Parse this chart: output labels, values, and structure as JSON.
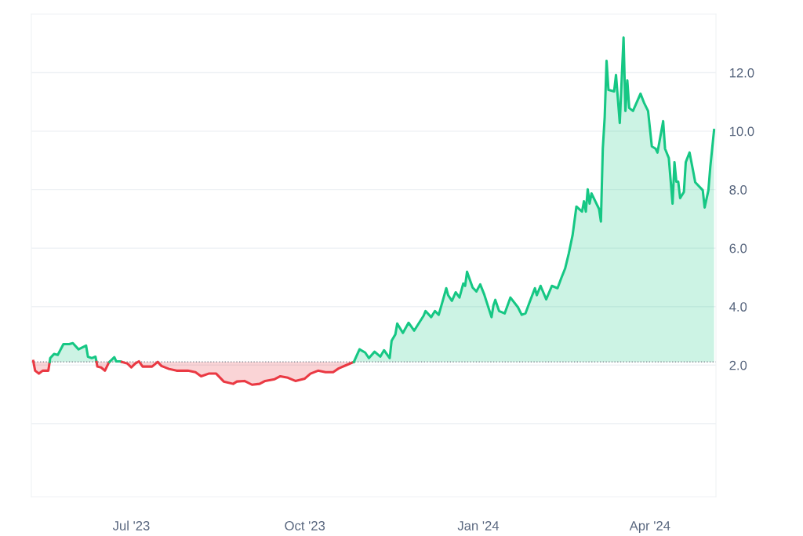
{
  "chart_data": {
    "type": "area",
    "series": [
      {
        "color": "#ea3943",
        "x": [
          "2023-05-10",
          "2023-05-11",
          "2023-05-13",
          "2023-05-15",
          "2023-05-18",
          "2023-05-18T17:00"
        ],
        "values": [
          2.14,
          1.81,
          1.71,
          1.81,
          1.81,
          2.11
        ]
      },
      {
        "color": "#16c784",
        "x": [
          "2023-05-18T17:00",
          "2023-05-19",
          "2023-05-21",
          "2023-05-23",
          "2023-05-26",
          "2023-05-29",
          "2023-05-31",
          "2023-06-03",
          "2023-06-07",
          "2023-06-08",
          "2023-06-10",
          "2023-06-12",
          "2023-06-12T13:00"
        ],
        "values": [
          2.11,
          2.24,
          2.38,
          2.35,
          2.72,
          2.72,
          2.75,
          2.54,
          2.67,
          2.29,
          2.24,
          2.29,
          2.11
        ]
      },
      {
        "color": "#ea3943",
        "x": [
          "2023-06-12T13:00",
          "2023-06-13",
          "2023-06-15",
          "2023-06-17",
          "2023-06-19",
          "2023-06-19T11:00"
        ],
        "values": [
          2.11,
          1.95,
          1.92,
          1.81,
          2.08,
          2.11
        ]
      },
      {
        "color": "#16c784",
        "x": [
          "2023-06-19T11:00",
          "2023-06-22",
          "2023-06-23",
          "2023-06-25",
          "2023-06-26"
        ],
        "values": [
          2.11,
          2.27,
          2.13,
          2.13,
          2.11
        ]
      },
      {
        "color": "#ea3943",
        "x": [
          "2023-06-26",
          "2023-06-29",
          "2023-07-01",
          "2023-07-03",
          "2023-07-05",
          "2023-07-07",
          "2023-07-12",
          "2023-07-15",
          "2023-07-17",
          "2023-07-21",
          "2023-07-25",
          "2023-07-31",
          "2023-08-04",
          "2023-08-07",
          "2023-08-11",
          "2023-08-15",
          "2023-08-19",
          "2023-08-24",
          "2023-08-26",
          "2023-08-30",
          "2023-09-03",
          "2023-09-07",
          "2023-09-10",
          "2023-09-15",
          "2023-09-18",
          "2023-09-22",
          "2023-09-26",
          "2023-10-01",
          "2023-10-04",
          "2023-10-08",
          "2023-10-12",
          "2023-10-16",
          "2023-10-19",
          "2023-10-23",
          "2023-10-27"
        ],
        "values": [
          2.11,
          2.05,
          1.92,
          2.05,
          2.13,
          1.95,
          1.95,
          2.11,
          1.97,
          1.87,
          1.81,
          1.81,
          1.76,
          1.62,
          1.71,
          1.71,
          1.44,
          1.36,
          1.44,
          1.46,
          1.33,
          1.36,
          1.46,
          1.52,
          1.62,
          1.57,
          1.46,
          1.54,
          1.71,
          1.81,
          1.76,
          1.76,
          1.89,
          2.0,
          2.11
        ]
      },
      {
        "color": "#16c784",
        "x": [
          "2023-10-27",
          "2023-10-30",
          "2023-11-02",
          "2023-11-04",
          "2023-11-07",
          "2023-11-10",
          "2023-11-12",
          "2023-11-15",
          "2023-11-16",
          "2023-11-18",
          "2023-11-19",
          "2023-11-22",
          "2023-11-25",
          "2023-11-28",
          "2023-12-03",
          "2023-12-04",
          "2023-12-07",
          "2023-12-09",
          "2023-12-11",
          "2023-12-13",
          "2023-12-15",
          "2023-12-16",
          "2023-12-18",
          "2023-12-20",
          "2023-12-22",
          "2023-12-24",
          "2023-12-25",
          "2023-12-26",
          "2023-12-29",
          "2023-12-31",
          "2024-01-02",
          "2024-01-04",
          "2024-01-08",
          "2024-01-09",
          "2024-01-10",
          "2024-01-12",
          "2024-01-15",
          "2024-01-18",
          "2024-01-22",
          "2024-01-24",
          "2024-01-26",
          "2024-01-28",
          "2024-01-31",
          "2024-02-01",
          "2024-02-03",
          "2024-02-06",
          "2024-02-09",
          "2024-02-12",
          "2024-02-14",
          "2024-02-16",
          "2024-02-18",
          "2024-02-20",
          "2024-02-22",
          "2024-02-25",
          "2024-02-26",
          "2024-02-27",
          "2024-02-28",
          "2024-02-29",
          "2024-03-01",
          "2024-03-05",
          "2024-03-06",
          "2024-03-07",
          "2024-03-08",
          "2024-03-09",
          "2024-03-10",
          "2024-03-13",
          "2024-03-14",
          "2024-03-16",
          "2024-03-18",
          "2024-03-19",
          "2024-03-20",
          "2024-03-21",
          "2024-03-23",
          "2024-03-27",
          "2024-03-29",
          "2024-03-31",
          "2024-04-02",
          "2024-04-04",
          "2024-04-05",
          "2024-04-08",
          "2024-04-09",
          "2024-04-11",
          "2024-04-13",
          "2024-04-14",
          "2024-04-15",
          "2024-04-16",
          "2024-04-17",
          "2024-04-19",
          "2024-04-20",
          "2024-04-22",
          "2024-04-24",
          "2024-04-25",
          "2024-04-29",
          "2024-04-30",
          "2024-05-02",
          "2024-05-03",
          "2024-05-05"
        ],
        "values": [
          2.11,
          2.54,
          2.43,
          2.24,
          2.46,
          2.29,
          2.51,
          2.24,
          2.83,
          3.05,
          3.42,
          3.1,
          3.45,
          3.18,
          3.69,
          3.85,
          3.64,
          3.85,
          3.72,
          4.17,
          4.63,
          4.39,
          4.2,
          4.49,
          4.31,
          4.79,
          4.71,
          5.19,
          4.65,
          4.52,
          4.76,
          4.44,
          3.64,
          4.04,
          4.23,
          3.85,
          3.77,
          4.31,
          3.98,
          3.72,
          3.77,
          4.12,
          4.63,
          4.39,
          4.71,
          4.25,
          4.71,
          4.63,
          4.98,
          5.3,
          5.83,
          6.45,
          7.42,
          7.25,
          7.6,
          7.25,
          8.01,
          7.52,
          7.87,
          7.34,
          6.91,
          9.4,
          10.47,
          12.4,
          11.41,
          11.36,
          11.92,
          10.28,
          13.2,
          10.69,
          11.73,
          10.79,
          10.69,
          11.28,
          10.95,
          10.69,
          9.48,
          9.4,
          9.27,
          10.34,
          9.4,
          9.08,
          7.52,
          8.94,
          8.27,
          8.27,
          7.71,
          7.92,
          8.94,
          9.27,
          8.6,
          8.25,
          7.98,
          7.39,
          7.98,
          8.78,
          10.04
        ]
      }
    ],
    "xlim": [
      "2023-05-09",
      "2024-05-06"
    ],
    "xticks": [
      {
        "value": "2023-07-01",
        "label": "Jul '23"
      },
      {
        "value": "2023-10-01",
        "label": "Oct '23"
      },
      {
        "value": "2024-01-01",
        "label": "Jan '24"
      },
      {
        "value": "2024-04-01",
        "label": "Apr '24"
      }
    ],
    "ylim": [
      -2.5,
      14.0
    ],
    "yticks": [
      {
        "value": 0,
        "label": null
      },
      {
        "value": 2,
        "label": "2.0"
      },
      {
        "value": 4,
        "label": "4.0"
      },
      {
        "value": 6,
        "label": "6.0"
      },
      {
        "value": 8,
        "label": "8.0"
      },
      {
        "value": 10,
        "label": "10.0"
      },
      {
        "value": 12,
        "label": "12.0"
      }
    ],
    "ref_lines": [
      {
        "axis": "y",
        "value": 2.11,
        "color": "#7a7f8a",
        "line_style": "dotted"
      }
    ],
    "grid": "y",
    "legend": false
  }
}
